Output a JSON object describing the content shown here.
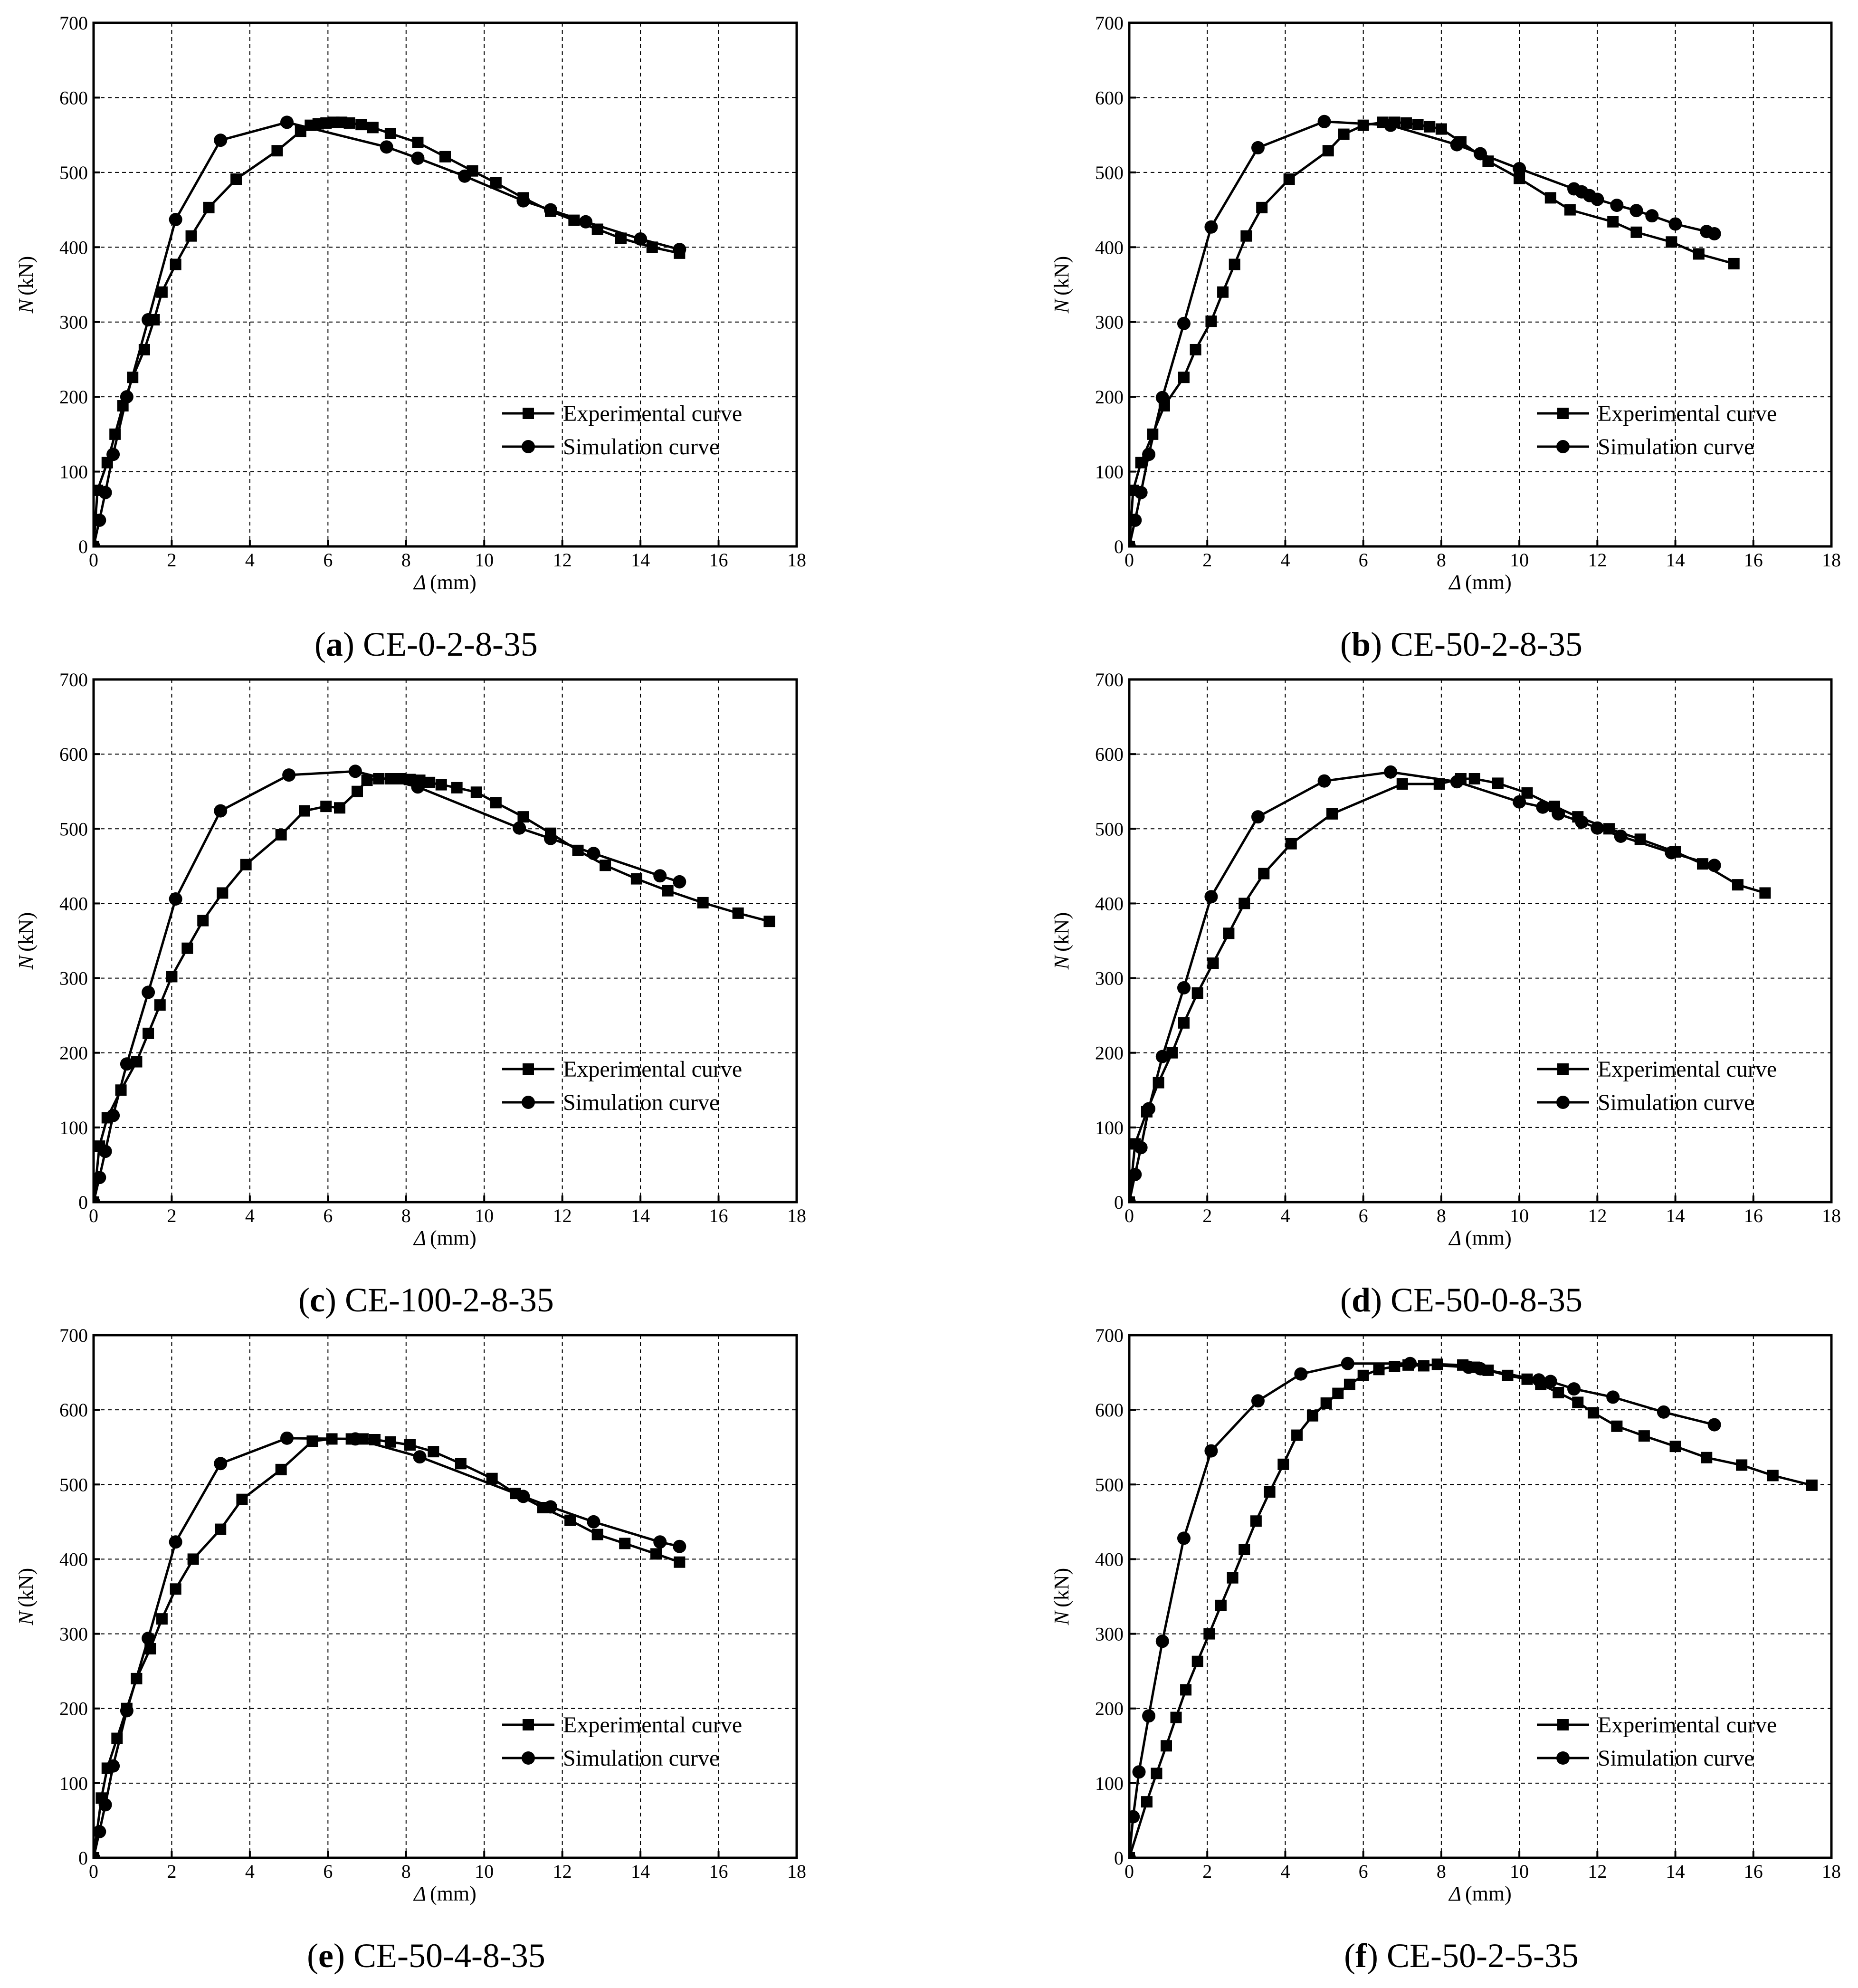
{
  "figure": {
    "xlabel_symbol": "Δ",
    "xlabel_unit": "(mm)",
    "ylabel_symbol": "N",
    "ylabel_unit": "(kN)",
    "legend": {
      "experimental": "Experimental curve",
      "simulation": "Simulation curve"
    }
  },
  "chart_data": [
    {
      "type": "line",
      "panel_letter": "a",
      "specimen": "CE-0-2-8-35",
      "xlim": [
        0,
        18
      ],
      "ylim": [
        0,
        700
      ],
      "xticks": [
        0,
        2,
        4,
        6,
        8,
        10,
        12,
        14,
        16,
        18
      ],
      "yticks": [
        0,
        100,
        200,
        300,
        400,
        500,
        600,
        700
      ],
      "grid": true,
      "legend_position": "lower-right",
      "series": [
        {
          "name": "Experimental curve",
          "marker": "square",
          "x": [
            0,
            0.1,
            0.35,
            0.55,
            0.75,
            1.0,
            1.3,
            1.55,
            1.75,
            2.1,
            2.5,
            2.95,
            3.65,
            4.7,
            5.3,
            5.55,
            5.75,
            5.95,
            6.15,
            6.35,
            6.55,
            6.85,
            7.15,
            7.6,
            8.3,
            9.0,
            9.7,
            10.3,
            11.0,
            11.7,
            12.3,
            12.9,
            13.5,
            14.3,
            15.0
          ],
          "y": [
            0,
            75,
            112,
            150,
            188,
            226,
            263,
            303,
            340,
            377,
            415,
            453,
            491,
            529,
            555,
            563,
            565,
            566,
            567,
            567,
            566,
            564,
            560,
            552,
            540,
            521,
            502,
            486,
            466,
            448,
            436,
            424,
            412,
            400,
            392
          ]
        },
        {
          "name": "Simulation curve",
          "marker": "circle",
          "x": [
            0,
            0.15,
            0.3,
            0.5,
            0.85,
            1.4,
            2.1,
            3.25,
            4.95,
            7.5,
            8.3,
            9.5,
            11.0,
            11.7,
            12.6,
            14.0,
            15.0
          ],
          "y": [
            0,
            35,
            72,
            123,
            200,
            303,
            437,
            543,
            567,
            534,
            519,
            495,
            462,
            450,
            434,
            411,
            397
          ]
        }
      ]
    },
    {
      "type": "line",
      "panel_letter": "b",
      "specimen": "CE-50-2-8-35",
      "xlim": [
        0,
        18
      ],
      "ylim": [
        0,
        700
      ],
      "xticks": [
        0,
        2,
        4,
        6,
        8,
        10,
        12,
        14,
        16,
        18
      ],
      "yticks": [
        0,
        100,
        200,
        300,
        400,
        500,
        600,
        700
      ],
      "grid": true,
      "legend_position": "lower-right",
      "series": [
        {
          "name": "Experimental curve",
          "marker": "square",
          "x": [
            0,
            0.1,
            0.3,
            0.6,
            0.9,
            1.4,
            1.7,
            2.1,
            2.4,
            2.7,
            3.0,
            3.4,
            4.1,
            5.1,
            5.5,
            6.0,
            6.5,
            6.8,
            7.1,
            7.4,
            7.7,
            8.0,
            8.5,
            9.2,
            10.0,
            10.8,
            11.3,
            12.4,
            13.0,
            13.9,
            14.6,
            15.5
          ],
          "y": [
            0,
            75,
            112,
            150,
            188,
            226,
            263,
            301,
            340,
            377,
            415,
            453,
            491,
            529,
            551,
            563,
            567,
            567,
            566,
            564,
            561,
            558,
            541,
            515,
            492,
            466,
            450,
            434,
            420,
            407,
            391,
            378
          ]
        },
        {
          "name": "Simulation curve",
          "marker": "circle",
          "x": [
            0,
            0.15,
            0.3,
            0.5,
            0.85,
            1.4,
            2.1,
            3.3,
            5.0,
            6.7,
            8.4,
            9.0,
            10.0,
            11.4,
            11.6,
            11.8,
            12.0,
            12.5,
            13.0,
            13.4,
            14.0,
            14.8,
            15.0
          ],
          "y": [
            0,
            35,
            72,
            123,
            199,
            298,
            427,
            533,
            568,
            563,
            537,
            525,
            505,
            478,
            474,
            469,
            464,
            456,
            449,
            442,
            431,
            421,
            418
          ]
        }
      ]
    },
    {
      "type": "line",
      "panel_letter": "c",
      "specimen": "CE-100-2-8-35",
      "xlim": [
        0,
        18
      ],
      "ylim": [
        0,
        700
      ],
      "xticks": [
        0,
        2,
        4,
        6,
        8,
        10,
        12,
        14,
        16,
        18
      ],
      "yticks": [
        0,
        100,
        200,
        300,
        400,
        500,
        600,
        700
      ],
      "grid": true,
      "legend_position": "lower-right",
      "series": [
        {
          "name": "Experimental curve",
          "marker": "square",
          "x": [
            0,
            0.15,
            0.35,
            0.7,
            1.1,
            1.4,
            1.7,
            2.0,
            2.4,
            2.8,
            3.3,
            3.9,
            4.8,
            5.4,
            5.95,
            6.3,
            6.75,
            7.0,
            7.3,
            7.6,
            7.85,
            8.1,
            8.35,
            8.6,
            8.9,
            9.3,
            9.8,
            10.3,
            11.0,
            11.7,
            12.4,
            13.1,
            13.9,
            14.7,
            15.6,
            16.5,
            17.3
          ],
          "y": [
            0,
            75,
            113,
            150,
            188,
            226,
            264,
            302,
            340,
            377,
            414,
            452,
            492,
            524,
            530,
            528,
            550,
            565,
            567,
            567,
            567,
            566,
            565,
            562,
            559,
            555,
            549,
            535,
            516,
            494,
            471,
            451,
            433,
            417,
            401,
            387,
            376
          ]
        },
        {
          "name": "Simulation curve",
          "marker": "circle",
          "x": [
            0,
            0.15,
            0.3,
            0.5,
            0.85,
            1.4,
            2.1,
            3.25,
            5.0,
            6.7,
            8.3,
            10.9,
            11.7,
            12.8,
            14.5,
            15.0
          ],
          "y": [
            0,
            33,
            68,
            116,
            185,
            281,
            406,
            524,
            572,
            577,
            556,
            501,
            487,
            467,
            437,
            429
          ]
        }
      ]
    },
    {
      "type": "line",
      "panel_letter": "d",
      "specimen": "CE-50-0-8-35",
      "xlim": [
        0,
        18
      ],
      "ylim": [
        0,
        700
      ],
      "xticks": [
        0,
        2,
        4,
        6,
        8,
        10,
        12,
        14,
        16,
        18
      ],
      "yticks": [
        0,
        100,
        200,
        300,
        400,
        500,
        600,
        700
      ],
      "grid": true,
      "legend_position": "lower-right",
      "series": [
        {
          "name": "Experimental curve",
          "marker": "square",
          "x": [
            0,
            0.15,
            0.45,
            0.75,
            1.1,
            1.4,
            1.75,
            2.15,
            2.55,
            2.95,
            3.45,
            4.15,
            5.2,
            7.0,
            7.95,
            8.5,
            8.85,
            9.45,
            10.2,
            10.9,
            11.5,
            12.3,
            13.1,
            14.0,
            14.7,
            15.6,
            16.3
          ],
          "y": [
            0,
            78,
            121,
            160,
            200,
            240,
            280,
            320,
            360,
            400,
            440,
            480,
            520,
            560,
            560,
            567,
            567,
            561,
            548,
            530,
            516,
            500,
            486,
            469,
            453,
            425,
            414
          ]
        },
        {
          "name": "Simulation curve",
          "marker": "circle",
          "x": [
            0,
            0.15,
            0.3,
            0.5,
            0.85,
            1.4,
            2.1,
            3.3,
            5.0,
            6.7,
            8.4,
            10.0,
            10.6,
            11.0,
            11.6,
            12.0,
            12.6,
            13.9,
            15.0
          ],
          "y": [
            0,
            37,
            73,
            125,
            195,
            287,
            409,
            516,
            564,
            576,
            563,
            536,
            529,
            520,
            509,
            501,
            490,
            468,
            451
          ]
        }
      ]
    },
    {
      "type": "line",
      "panel_letter": "e",
      "specimen": "CE-50-4-8-35",
      "xlim": [
        0,
        18
      ],
      "ylim": [
        0,
        700
      ],
      "xticks": [
        0,
        2,
        4,
        6,
        8,
        10,
        12,
        14,
        16,
        18
      ],
      "yticks": [
        0,
        100,
        200,
        300,
        400,
        500,
        600,
        700
      ],
      "grid": true,
      "legend_position": "lower-right",
      "series": [
        {
          "name": "Experimental curve",
          "marker": "square",
          "x": [
            0,
            0.2,
            0.35,
            0.6,
            0.85,
            1.1,
            1.45,
            1.75,
            2.1,
            2.55,
            3.25,
            3.8,
            4.8,
            5.6,
            6.1,
            6.6,
            6.9,
            7.2,
            7.6,
            8.1,
            8.7,
            9.4,
            10.2,
            10.8,
            11.5,
            12.2,
            12.9,
            13.6,
            14.4,
            15.0
          ],
          "y": [
            0,
            80,
            120,
            160,
            200,
            240,
            280,
            320,
            360,
            400,
            440,
            480,
            520,
            558,
            561,
            561,
            561,
            560,
            557,
            553,
            544,
            528,
            508,
            488,
            469,
            452,
            433,
            421,
            407,
            396
          ]
        },
        {
          "name": "Simulation curve",
          "marker": "circle",
          "x": [
            0,
            0.15,
            0.3,
            0.5,
            0.85,
            1.4,
            2.1,
            3.25,
            4.95,
            6.7,
            8.35,
            11.0,
            11.7,
            12.8,
            14.5,
            15.0
          ],
          "y": [
            0,
            35,
            71,
            123,
            197,
            294,
            423,
            528,
            562,
            561,
            537,
            484,
            470,
            450,
            423,
            417
          ]
        }
      ]
    },
    {
      "type": "line",
      "panel_letter": "f",
      "specimen": "CE-50-2-5-35",
      "xlim": [
        0,
        18
      ],
      "ylim": [
        0,
        700
      ],
      "xticks": [
        0,
        2,
        4,
        6,
        8,
        10,
        12,
        14,
        16,
        18
      ],
      "yticks": [
        0,
        100,
        200,
        300,
        400,
        500,
        600,
        700
      ],
      "grid": true,
      "legend_position": "lower-right",
      "series": [
        {
          "name": "Experimental curve",
          "marker": "square",
          "x": [
            0,
            0.45,
            0.7,
            0.95,
            1.2,
            1.45,
            1.75,
            2.05,
            2.35,
            2.65,
            2.95,
            3.25,
            3.6,
            3.95,
            4.3,
            4.7,
            5.05,
            5.35,
            5.65,
            6.0,
            6.4,
            6.8,
            7.15,
            7.55,
            7.9,
            8.55,
            8.85,
            9.2,
            9.7,
            10.2,
            10.55,
            11.0,
            11.5,
            11.9,
            12.5,
            13.2,
            14.0,
            14.8,
            15.7,
            16.5,
            17.5
          ],
          "y": [
            0,
            75,
            113,
            150,
            188,
            225,
            263,
            300,
            338,
            375,
            413,
            451,
            490,
            527,
            566,
            592,
            609,
            622,
            634,
            646,
            654,
            658,
            660,
            659,
            661,
            660,
            657,
            653,
            646,
            641,
            634,
            623,
            610,
            596,
            578,
            565,
            551,
            536,
            526,
            512,
            499
          ]
        },
        {
          "name": "Simulation curve",
          "marker": "circle",
          "x": [
            0,
            0.1,
            0.25,
            0.5,
            0.85,
            1.4,
            2.1,
            3.3,
            4.4,
            5.6,
            7.2,
            8.7,
            9.0,
            10.5,
            10.8,
            11.4,
            12.4,
            13.7,
            15.0
          ],
          "y": [
            0,
            55,
            115,
            190,
            290,
            428,
            545,
            612,
            648,
            662,
            662,
            657,
            655,
            640,
            638,
            628,
            617,
            597,
            580
          ]
        }
      ]
    }
  ]
}
